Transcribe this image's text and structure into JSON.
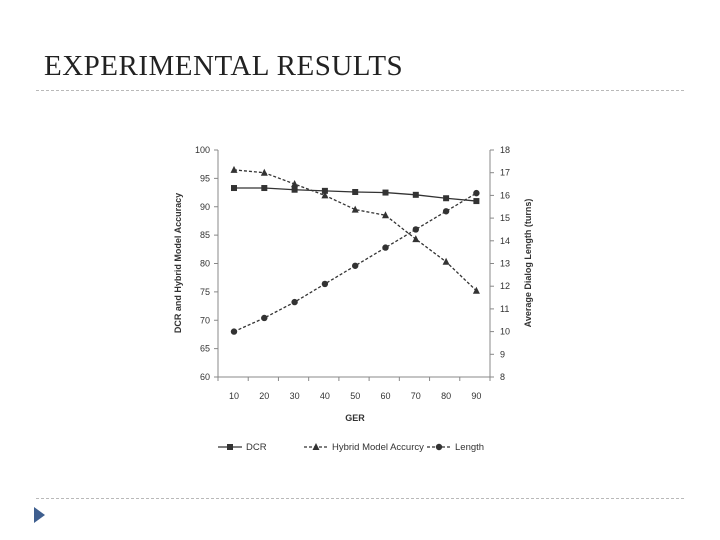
{
  "slide": {
    "title": "EXPERIMENTAL RESULTS"
  },
  "colors": {
    "rule": "#b9b9b9",
    "series": "#333333",
    "bullet": "#3f5f8f"
  },
  "icons": {
    "bullet": "triangle-arrow-icon"
  },
  "chart_data": {
    "type": "line",
    "title": "",
    "xlabel": "GER",
    "ylabel_left": "DCR and Hybrid Model Accuracy",
    "ylabel_right": "Average Dialog Length (turns)",
    "x": [
      10,
      20,
      30,
      40,
      50,
      60,
      70,
      80,
      90
    ],
    "x_ticks": [
      "10",
      "20",
      "30",
      "40",
      "50",
      "60",
      "70",
      "80",
      "90"
    ],
    "y_left_lim": [
      60,
      100
    ],
    "y_left_ticks": [
      "60",
      "65",
      "70",
      "75",
      "80",
      "85",
      "90",
      "95",
      "100"
    ],
    "y_right_lim": [
      8,
      18
    ],
    "y_right_ticks": [
      "8",
      "9",
      "10",
      "11",
      "12",
      "13",
      "14",
      "15",
      "16",
      "17",
      "18"
    ],
    "grid": false,
    "legend_position": "bottom",
    "series": [
      {
        "name": "DCR",
        "axis": "left",
        "marker": "square",
        "dash": "solid",
        "values": [
          93.3,
          93.3,
          93.0,
          92.8,
          92.6,
          92.5,
          92.1,
          91.5,
          91.0
        ]
      },
      {
        "name": "Hybrid Model Accurcy",
        "axis": "left",
        "marker": "triangle",
        "dash": "dashed",
        "values": [
          96.5,
          96.0,
          94.0,
          92.0,
          89.5,
          88.5,
          84.3,
          80.3,
          75.2
        ]
      },
      {
        "name": "Length",
        "axis": "right",
        "marker": "circle",
        "dash": "dashed",
        "values": [
          10.0,
          10.6,
          11.3,
          12.1,
          12.9,
          13.7,
          14.5,
          15.3,
          16.1
        ]
      }
    ]
  }
}
